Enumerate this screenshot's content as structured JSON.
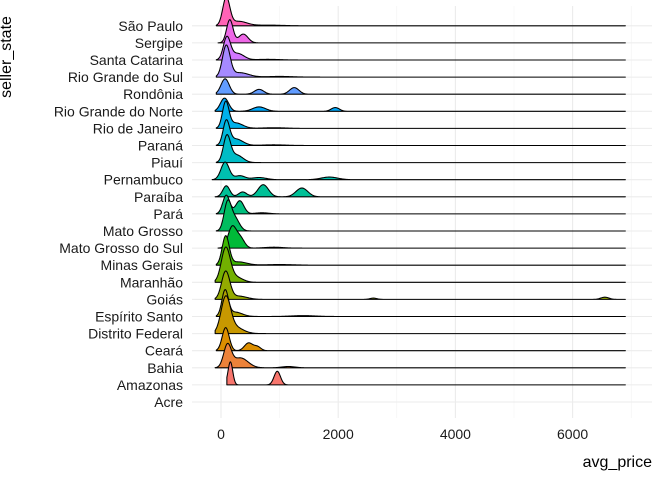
{
  "chart_data": {
    "type": "ridgeline",
    "xlabel": "avg_price",
    "ylabel": "seller_state",
    "xlim": [
      -300,
      6950
    ],
    "x_ticks": [
      0,
      2000,
      4000,
      6000
    ],
    "x_tick_labels": [
      "0",
      "2000",
      "4000",
      "6000"
    ],
    "grid": true,
    "legend": "none",
    "categories": [
      "Acre",
      "Amazonas",
      "Bahia",
      "Ceará",
      "Distrito Federal",
      "Espírito Santo",
      "Goiás",
      "Maranhão",
      "Minas Gerais",
      "Mato Grosso do Sul",
      "Mato Grosso",
      "Pará",
      "Paraíba",
      "Pernambuco",
      "Piauí",
      "Paraná",
      "Rio de Janeiro",
      "Rio Grande do Norte",
      "Rondônia",
      "Rio Grande do Sul",
      "Santa Catarina",
      "Sergipe",
      "São Paulo"
    ],
    "series": [
      {
        "state": "Acre",
        "color": "#F8766D",
        "range": null,
        "peaks": []
      },
      {
        "state": "Amazonas",
        "color": "#F8766D",
        "range": [
          100,
          6900
        ],
        "peaks": [
          [
            160,
            1.05,
            40
          ],
          [
            960,
            0.62,
            55
          ]
        ]
      },
      {
        "state": "Bahia",
        "color": "#EC8239",
        "range": [
          -100,
          6900
        ],
        "peaks": [
          [
            110,
            1.0,
            65
          ],
          [
            330,
            0.45,
            130
          ],
          [
            1150,
            0.06,
            110
          ]
        ]
      },
      {
        "state": "Ceará",
        "color": "#DB8E00",
        "range": [
          -80,
          6900
        ],
        "peaks": [
          [
            80,
            1.05,
            60
          ],
          [
            470,
            0.35,
            70
          ],
          [
            620,
            0.18,
            60
          ]
        ]
      },
      {
        "state": "Distrito Federal",
        "color": "#C79800",
        "range": [
          -100,
          6900
        ],
        "peaks": [
          [
            80,
            1.55,
            80
          ],
          [
            230,
            0.3,
            140
          ]
        ]
      },
      {
        "state": "Espírito Santo",
        "color": "#AFA100",
        "range": [
          -80,
          6900
        ],
        "peaks": [
          [
            70,
            1.15,
            55
          ],
          [
            240,
            0.2,
            120
          ],
          [
            1400,
            0.04,
            200
          ]
        ]
      },
      {
        "state": "Goiás",
        "color": "#94AA00",
        "range": [
          -100,
          6900
        ],
        "peaks": [
          [
            80,
            1.25,
            70
          ],
          [
            300,
            0.15,
            140
          ],
          [
            2600,
            0.06,
            60
          ],
          [
            6550,
            0.1,
            70
          ]
        ]
      },
      {
        "state": "Maranhão",
        "color": "#72B000",
        "range": [
          -100,
          6900
        ],
        "peaks": [
          [
            80,
            1.5,
            75
          ],
          [
            240,
            0.25,
            120
          ]
        ]
      },
      {
        "state": "Minas Gerais",
        "color": "#3DB600",
        "range": [
          -80,
          6900
        ],
        "peaks": [
          [
            80,
            1.3,
            60
          ],
          [
            300,
            0.15,
            140
          ],
          [
            1000,
            0.03,
            250
          ]
        ]
      },
      {
        "state": "Mato Grosso do Sul",
        "color": "#00BA38",
        "range": [
          -50,
          6900
        ],
        "peaks": [
          [
            190,
            0.95,
            70
          ],
          [
            330,
            0.45,
            70
          ],
          [
            900,
            0.04,
            150
          ]
        ]
      },
      {
        "state": "Mato Grosso",
        "color": "#00BD5F",
        "range": [
          -80,
          6900
        ],
        "peaks": [
          [
            110,
            1.2,
            60
          ],
          [
            230,
            0.6,
            80
          ]
        ]
      },
      {
        "state": "Pará",
        "color": "#00BF7D",
        "range": [
          -80,
          6900
        ],
        "peaks": [
          [
            90,
            0.85,
            60
          ],
          [
            320,
            0.6,
            70
          ],
          [
            700,
            0.05,
            120
          ]
        ]
      },
      {
        "state": "Paraíba",
        "color": "#00C097",
        "range": [
          -100,
          6900
        ],
        "peaks": [
          [
            90,
            0.5,
            60
          ],
          [
            370,
            0.22,
            70
          ],
          [
            720,
            0.55,
            90
          ],
          [
            1380,
            0.4,
            100
          ]
        ]
      },
      {
        "state": "Pernambuco",
        "color": "#00C0AF",
        "range": [
          -150,
          6900
        ],
        "peaks": [
          [
            70,
            0.8,
            70
          ],
          [
            320,
            0.18,
            90
          ],
          [
            650,
            0.1,
            120
          ],
          [
            1850,
            0.12,
            140
          ]
        ]
      },
      {
        "state": "Piauí",
        "color": "#00BCC6",
        "range": [
          -80,
          6900
        ],
        "peaks": [
          [
            100,
            1.15,
            60
          ],
          [
            260,
            0.35,
            110
          ]
        ]
      },
      {
        "state": "Paraná",
        "color": "#00B8DA",
        "range": [
          -80,
          6900
        ],
        "peaks": [
          [
            90,
            1.05,
            55
          ],
          [
            250,
            0.3,
            120
          ],
          [
            900,
            0.03,
            200
          ]
        ]
      },
      {
        "state": "Rio de Janeiro",
        "color": "#00B1EB",
        "range": [
          -80,
          6900
        ],
        "peaks": [
          [
            80,
            1.15,
            55
          ],
          [
            250,
            0.25,
            120
          ],
          [
            900,
            0.03,
            200
          ]
        ]
      },
      {
        "state": "Rio Grande do Norte",
        "color": "#00A7F9",
        "range": [
          -100,
          6900
        ],
        "peaks": [
          [
            60,
            0.6,
            70
          ],
          [
            650,
            0.2,
            110
          ],
          [
            1950,
            0.17,
            70
          ]
        ]
      },
      {
        "state": "Rondônia",
        "color": "#619CFF",
        "range": [
          -80,
          6900
        ],
        "peaks": [
          [
            70,
            0.7,
            70
          ],
          [
            650,
            0.22,
            80
          ],
          [
            1250,
            0.3,
            80
          ]
        ]
      },
      {
        "state": "Rio Grande do Sul",
        "color": "#A58AFF",
        "range": [
          -80,
          6900
        ],
        "peaks": [
          [
            90,
            1.4,
            65
          ],
          [
            320,
            0.2,
            150
          ],
          [
            1000,
            0.03,
            220
          ]
        ]
      },
      {
        "state": "Santa Catarina",
        "color": "#D376FF",
        "range": [
          -80,
          6900
        ],
        "peaks": [
          [
            100,
            1.0,
            60
          ],
          [
            280,
            0.3,
            110
          ],
          [
            800,
            0.03,
            200
          ]
        ]
      },
      {
        "state": "Sergipe",
        "color": "#EE67E6",
        "range": [
          -50,
          6900
        ],
        "peaks": [
          [
            150,
            1.05,
            55
          ],
          [
            380,
            0.4,
            80
          ]
        ]
      },
      {
        "state": "São Paulo",
        "color": "#FF63B6",
        "range": [
          -80,
          6900
        ],
        "peaks": [
          [
            90,
            1.25,
            60
          ],
          [
            300,
            0.2,
            140
          ],
          [
            800,
            0.03,
            250
          ]
        ]
      }
    ]
  }
}
